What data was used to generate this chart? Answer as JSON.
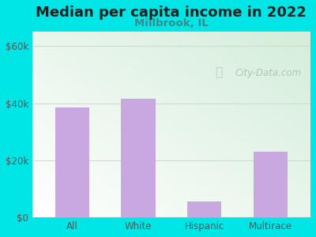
{
  "title": "Median per capita income in 2022",
  "subtitle": "Millbrook, IL",
  "categories": [
    "All",
    "White",
    "Hispanic",
    "Multirace"
  ],
  "values": [
    38500,
    41500,
    5500,
    23000
  ],
  "bar_color": "#c9a8e0",
  "title_fontsize": 13,
  "subtitle_fontsize": 9.5,
  "subtitle_color": "#3a8a8a",
  "tick_label_color": "#555555",
  "background_color": "#00e5e5",
  "ylim": [
    0,
    65000
  ],
  "yticks": [
    0,
    20000,
    40000,
    60000
  ],
  "watermark": "City-Data.com",
  "watermark_color": "#aabfaa",
  "grid_color": "#ccddcc",
  "bottom_spine_color": "#aaaaaa"
}
